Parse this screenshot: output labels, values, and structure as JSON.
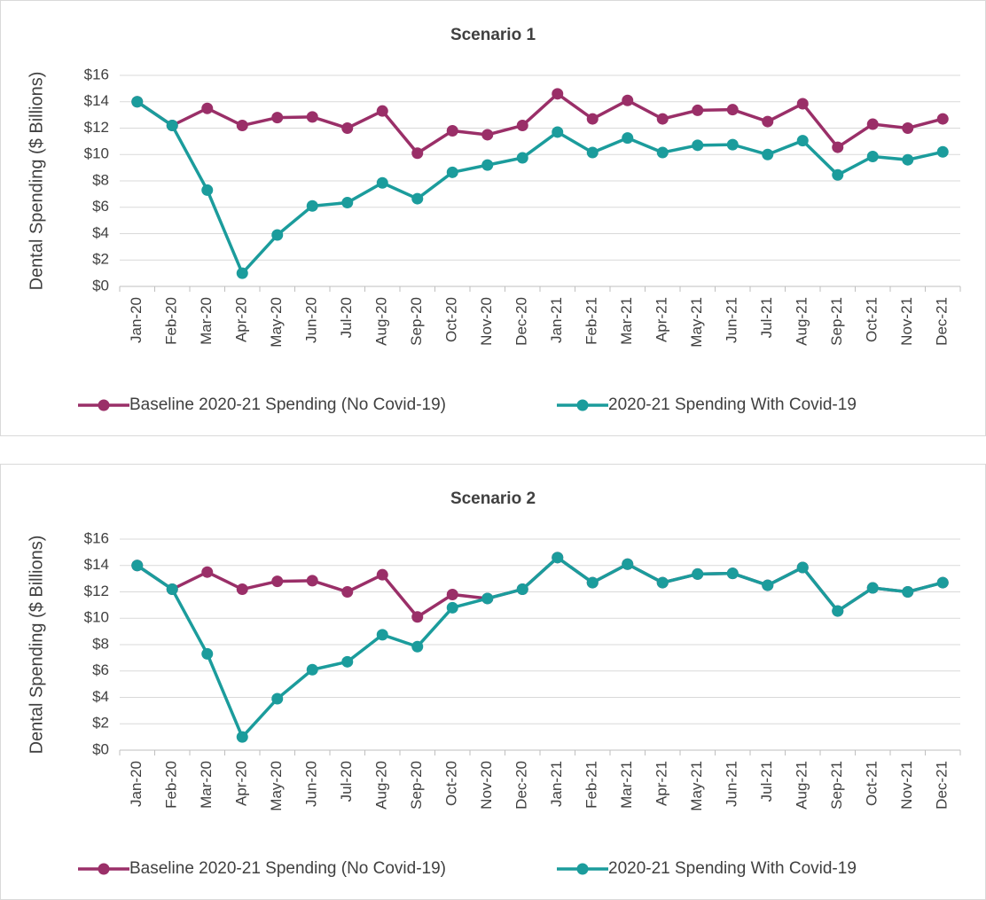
{
  "chart_data": [
    {
      "type": "line",
      "title": "Scenario 1",
      "y_label": "Dental Spending ($ Billions)",
      "categories": [
        "Jan-20",
        "Feb-20",
        "Mar-20",
        "Apr-20",
        "May-20",
        "Jun-20",
        "Jul-20",
        "Aug-20",
        "Sep-20",
        "Oct-20",
        "Nov-20",
        "Dec-20",
        "Jan-21",
        "Feb-21",
        "Mar-21",
        "Apr-21",
        "May-21",
        "Jun-21",
        "Jul-21",
        "Aug-21",
        "Sep-21",
        "Oct-21",
        "Nov-21",
        "Dec-21"
      ],
      "series": [
        {
          "name": "Baseline 2020-21 Spending (No Covid-19)",
          "color": "#9a2f68",
          "values": [
            14.0,
            12.2,
            13.5,
            12.2,
            12.8,
            12.85,
            12.0,
            13.3,
            10.1,
            11.8,
            11.5,
            12.2,
            14.6,
            12.7,
            14.1,
            12.7,
            13.35,
            13.4,
            12.5,
            13.85,
            10.55,
            12.3,
            12.0,
            12.7
          ]
        },
        {
          "name": "2020-21 Spending With Covid-19",
          "color": "#1b9c9c",
          "values": [
            14.0,
            12.2,
            7.3,
            1.0,
            3.9,
            6.1,
            6.35,
            7.85,
            6.65,
            8.65,
            9.2,
            9.75,
            11.7,
            10.15,
            11.25,
            10.15,
            10.7,
            10.75,
            10.0,
            11.05,
            8.45,
            9.85,
            9.6,
            10.2
          ]
        }
      ],
      "ylim": [
        0,
        16
      ],
      "yticks": [
        {
          "value": 0,
          "label": "$0"
        },
        {
          "value": 2,
          "label": "$2"
        },
        {
          "value": 4,
          "label": "$4"
        },
        {
          "value": 6,
          "label": "$6"
        },
        {
          "value": 8,
          "label": "$8"
        },
        {
          "value": 10,
          "label": "$10"
        },
        {
          "value": 12,
          "label": "$12"
        },
        {
          "value": 14,
          "label": "$14"
        },
        {
          "value": 16,
          "label": "$16"
        }
      ],
      "grid": true,
      "legend": "bottom"
    },
    {
      "type": "line",
      "title": "Scenario 2",
      "y_label": "Dental Spending ($ Billions)",
      "categories": [
        "Jan-20",
        "Feb-20",
        "Mar-20",
        "Apr-20",
        "May-20",
        "Jun-20",
        "Jul-20",
        "Aug-20",
        "Sep-20",
        "Oct-20",
        "Nov-20",
        "Dec-20",
        "Jan-21",
        "Feb-21",
        "Mar-21",
        "Apr-21",
        "May-21",
        "Jun-21",
        "Jul-21",
        "Aug-21",
        "Sep-21",
        "Oct-21",
        "Nov-21",
        "Dec-21"
      ],
      "series": [
        {
          "name": "Baseline 2020-21 Spending (No Covid-19)",
          "color": "#9a2f68",
          "values": [
            14.0,
            12.2,
            13.5,
            12.2,
            12.8,
            12.85,
            12.0,
            13.3,
            10.1,
            11.8,
            11.5,
            12.2,
            14.6,
            12.7,
            14.1,
            12.7,
            13.35,
            13.4,
            12.5,
            13.85,
            10.55,
            12.3,
            12.0,
            12.7
          ]
        },
        {
          "name": "2020-21 Spending With Covid-19",
          "color": "#1b9c9c",
          "values": [
            14.0,
            12.2,
            7.3,
            1.0,
            3.9,
            6.1,
            6.7,
            8.75,
            7.85,
            10.8,
            11.5,
            12.2,
            14.6,
            12.7,
            14.1,
            12.7,
            13.35,
            13.4,
            12.5,
            13.85,
            10.55,
            12.3,
            12.0,
            12.7
          ]
        }
      ],
      "ylim": [
        0,
        16
      ],
      "yticks": [
        {
          "value": 0,
          "label": "$0"
        },
        {
          "value": 2,
          "label": "$2"
        },
        {
          "value": 4,
          "label": "$4"
        },
        {
          "value": 6,
          "label": "$6"
        },
        {
          "value": 8,
          "label": "$8"
        },
        {
          "value": 10,
          "label": "$10"
        },
        {
          "value": 12,
          "label": "$12"
        },
        {
          "value": 14,
          "label": "$14"
        },
        {
          "value": 16,
          "label": "$16"
        }
      ],
      "grid": true,
      "legend": "bottom"
    }
  ]
}
